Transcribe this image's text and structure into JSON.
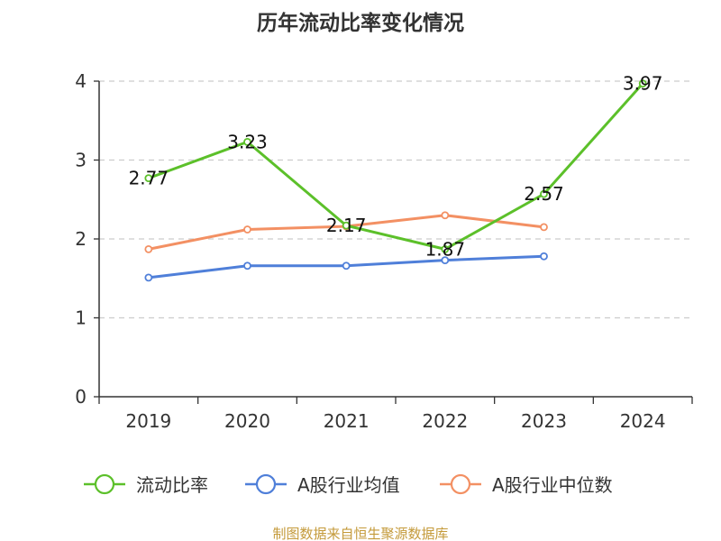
{
  "chart_data": {
    "type": "line",
    "title": "历年流动比率变化情况",
    "categories": [
      "2019",
      "2020",
      "2021",
      "2022",
      "2023",
      "2024"
    ],
    "ylim": [
      0,
      4
    ],
    "yticks": [
      0,
      1,
      2,
      3,
      4
    ],
    "grid": true,
    "legend_position": "bottom",
    "series": [
      {
        "name": "流动比率",
        "color": "#5cc02a",
        "values": [
          2.77,
          3.23,
          2.17,
          1.87,
          2.57,
          3.97
        ],
        "data_labels": [
          "2.77",
          "3.23",
          "2.17",
          "1.87",
          "2.57",
          "3.97"
        ]
      },
      {
        "name": "A股行业均值",
        "color": "#4f7fd9",
        "values": [
          1.51,
          1.66,
          1.66,
          1.73,
          1.78,
          null
        ]
      },
      {
        "name": "A股行业中位数",
        "color": "#f39063",
        "values": [
          1.87,
          2.12,
          2.16,
          2.3,
          2.15,
          null
        ]
      }
    ]
  },
  "footer": {
    "source": "制图数据来自恒生聚源数据库"
  }
}
